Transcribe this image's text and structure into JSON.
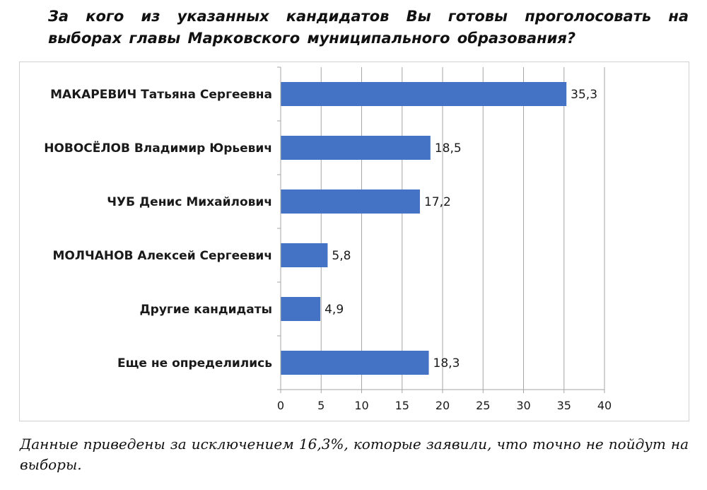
{
  "title": "За кого из указанных кандидатов Вы готовы проголосовать на выборах главы Марковского муниципального образования?",
  "note": "Данные приведены за исключением 16,3%, которые заявили, что точно не пойдут на выборы.",
  "colors": {
    "bar": "#4472C4",
    "grid": "#a6a6a6",
    "axis": "#a6a6a6"
  },
  "chart_data": {
    "type": "bar",
    "orientation": "horizontal",
    "categories": [
      "МАКАРЕВИЧ Татьяна Сергеевна",
      "НОВОСЁЛОВ Владимир Юрьевич",
      "ЧУБ Денис Михайлович",
      "МОЛЧАНОВ Алексей Сергеевич",
      "Другие кандидаты",
      "Еще не определились"
    ],
    "values": [
      35.3,
      18.5,
      17.2,
      5.8,
      4.9,
      18.3
    ],
    "value_labels": [
      "35,3",
      "18,5",
      "17,2",
      "5,8",
      "4,9",
      "18,3"
    ],
    "xlim": [
      0,
      40
    ],
    "xticks": [
      0,
      5,
      10,
      15,
      20,
      25,
      30,
      35,
      40
    ],
    "grid": true,
    "legend": false
  }
}
